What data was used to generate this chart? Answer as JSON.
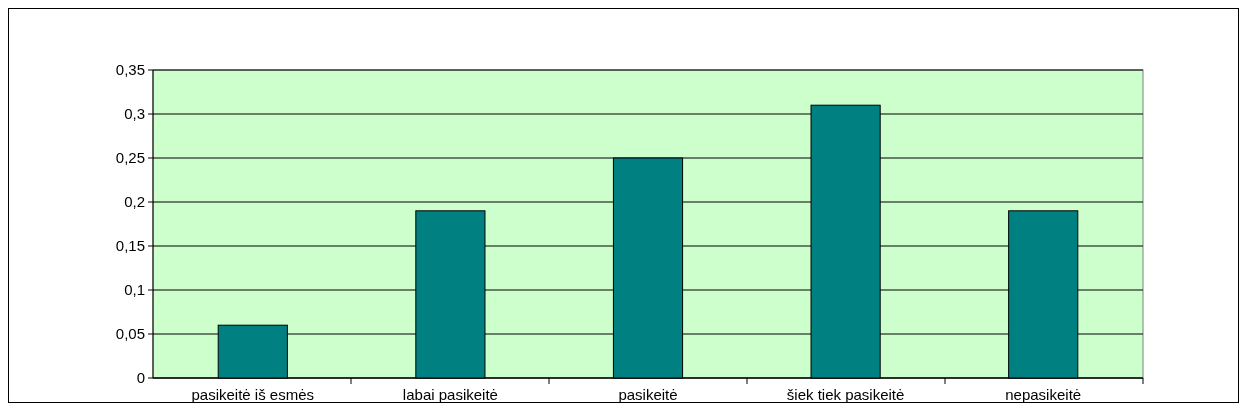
{
  "chart_data": {
    "type": "bar",
    "categories": [
      "pasikeitė iš esmės",
      "labai pasikeitė",
      "pasikeitė",
      "šiek tiek pasikeitė",
      "nepasikeitė"
    ],
    "values": [
      0.06,
      0.19,
      0.25,
      0.31,
      0.19
    ],
    "color": "#008080",
    "ylim": [
      0,
      0.35
    ],
    "yticks": [
      {
        "value": 0,
        "label": "0"
      },
      {
        "value": 0.05,
        "label": "0,05"
      },
      {
        "value": 0.1,
        "label": "0,1"
      },
      {
        "value": 0.15,
        "label": "0,15"
      },
      {
        "value": 0.2,
        "label": "0,2"
      },
      {
        "value": 0.25,
        "label": "0,25"
      },
      {
        "value": 0.3,
        "label": "0,3"
      },
      {
        "value": 0.35,
        "label": "0,35"
      }
    ],
    "grid": "y"
  }
}
